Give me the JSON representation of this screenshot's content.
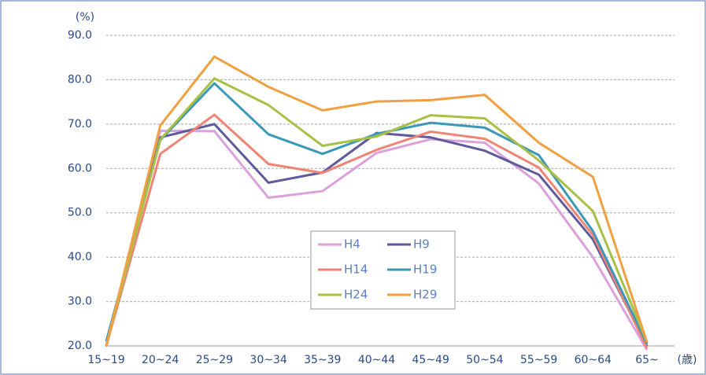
{
  "chart_data": {
    "type": "line",
    "y_label": "(%)",
    "x_label": "(歳)",
    "categories": [
      "15~19",
      "20~24",
      "25~29",
      "30~34",
      "35~39",
      "40~44",
      "45~49",
      "50~54",
      "55~59",
      "60~64",
      "65~"
    ],
    "series": [
      {
        "name": "H4",
        "color": "#dca0dc",
        "values": [
          19.8,
          68.5,
          68.4,
          53.4,
          54.9,
          63.5,
          66.6,
          65.8,
          56.6,
          40.0,
          19.1
        ]
      },
      {
        "name": "H9",
        "color": "#5e5a9c",
        "values": [
          20.0,
          67.0,
          70.0,
          56.8,
          59.1,
          68.0,
          67.0,
          64.0,
          58.6,
          44.0,
          20.0
        ]
      },
      {
        "name": "H14",
        "color": "#f08474",
        "values": [
          20.0,
          63.3,
          72.1,
          61.0,
          59.0,
          64.2,
          68.3,
          66.7,
          60.2,
          45.0,
          19.5
        ]
      },
      {
        "name": "H19",
        "color": "#3c98b8",
        "values": [
          21.0,
          66.4,
          79.2,
          67.7,
          63.3,
          67.8,
          70.3,
          69.2,
          63.0,
          45.9,
          20.5
        ]
      },
      {
        "name": "H24",
        "color": "#a9c046",
        "values": [
          20.0,
          66.5,
          80.3,
          74.3,
          65.1,
          67.2,
          72.0,
          71.3,
          61.8,
          50.4,
          20.9
        ]
      },
      {
        "name": "H29",
        "color": "#f0a040",
        "values": [
          20.0,
          69.7,
          85.2,
          78.4,
          73.1,
          75.1,
          75.4,
          76.6,
          65.8,
          58.1,
          20.8
        ]
      }
    ],
    "ylim": [
      20,
      90
    ],
    "yticks": [
      {
        "value": 20,
        "label": "20.0"
      },
      {
        "value": 30,
        "label": "30.0"
      },
      {
        "value": 40,
        "label": "40.0"
      },
      {
        "value": 50,
        "label": "50.0"
      },
      {
        "value": 60,
        "label": "60.0"
      },
      {
        "value": 70,
        "label": "70.0"
      },
      {
        "value": 80,
        "label": "80.0"
      },
      {
        "value": 90,
        "label": "90.0"
      }
    ],
    "grid": true
  }
}
